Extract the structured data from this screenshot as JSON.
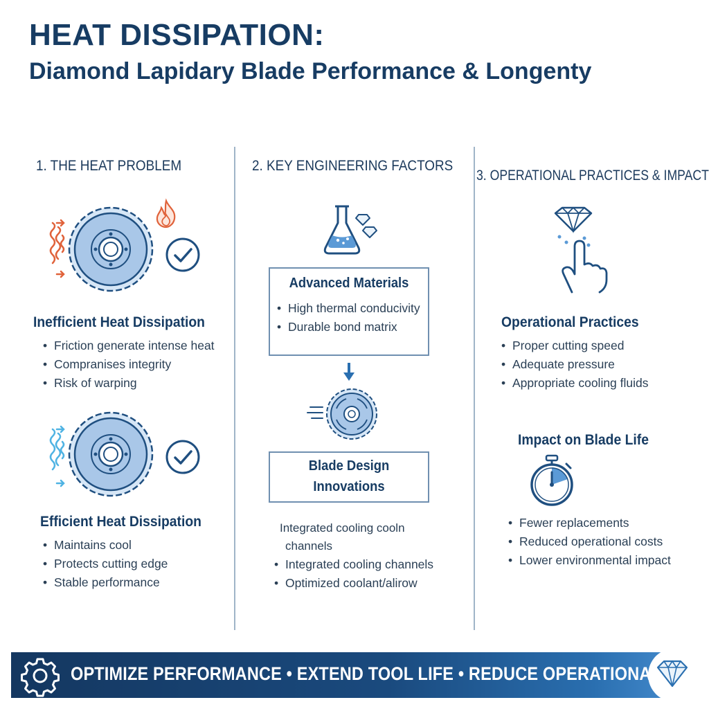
{
  "header": {
    "title": "HEAT DISSIPATION:",
    "subtitle": "Diamond Lapidary Blade Performance & Longenty"
  },
  "col1": {
    "heading": "1. THE HEAT PROBLEM",
    "inefficient": {
      "title": "Inefficient Heat Dissipation",
      "bullets": [
        "Friction generate intense heat",
        "Compranises integrity",
        "Risk of warping"
      ]
    },
    "efficient": {
      "title": "Efficient Heat Dissipation",
      "bullets": [
        "Maintains cool",
        "Protects cutting edge",
        "Stable performance"
      ]
    }
  },
  "col2": {
    "heading": "2. KEY ENGINEERING FACTORS",
    "materials": {
      "title": "Advanced Materials",
      "bullets": [
        "High thermal conducivity",
        "Durable bond matrix"
      ]
    },
    "design": {
      "title_line1": "Blade Design",
      "title_line2": "Innovations",
      "intro_line1": "Integrated cooling cooln",
      "intro_line2": "channels",
      "bullets": [
        "Integrated cooling channels",
        "Optimized coolant/alirow"
      ]
    }
  },
  "col3": {
    "heading": "3. OPERATIONAL PRACTICES & IMPACT",
    "practices": {
      "title": "Operational Practices",
      "bullets": [
        "Proper cutting speed",
        "Adequate pressure",
        "Appropriate cooling fluids"
      ]
    },
    "impact": {
      "title": "Impact on Blade Life",
      "bullets": [
        "Fewer replacements",
        "Reduced operational costs",
        "Lower environmental impact"
      ]
    }
  },
  "footer": {
    "banner_text": "OPTIMIZE PERFORMANCE • EXTEND TOOL LIFE • REDUCE OPERATIONAL COSTS"
  },
  "icons": {
    "hot_blade": "blade-with-heat-icon",
    "cool_blade": "blade-with-cooling-icon",
    "flame": "flame-icon",
    "check": "checkmark-icon",
    "flask": "flask-icon",
    "diamond": "diamond-icon",
    "moving_blade": "moving-blade-icon",
    "arrow": "arrow-down-icon",
    "hand": "hand-pointing-icon",
    "stopwatch": "stopwatch-icon",
    "gear": "gear-icon"
  },
  "colors": {
    "navy": "#173c63",
    "blade_fill": "#a9c7e8",
    "heat": "#e0623a",
    "cool": "#4fb3e3"
  }
}
